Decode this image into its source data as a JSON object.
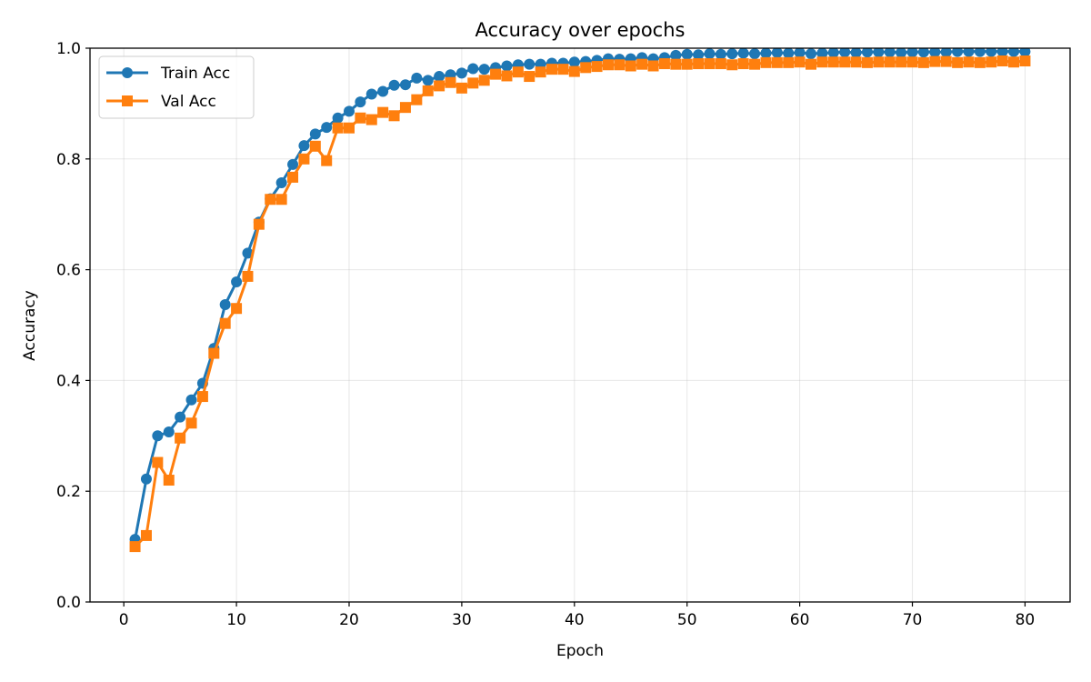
{
  "chart_data": {
    "type": "line",
    "title": "Accuracy over epochs",
    "xlabel": "Epoch",
    "ylabel": "Accuracy",
    "xlim": [
      -3,
      84
    ],
    "ylim": [
      0.0,
      1.0
    ],
    "xticks": [
      0,
      10,
      20,
      30,
      40,
      50,
      60,
      70,
      80
    ],
    "yticks": [
      0.0,
      0.2,
      0.4,
      0.6,
      0.8,
      1.0
    ],
    "xtick_labels": [
      "0",
      "10",
      "20",
      "30",
      "40",
      "50",
      "60",
      "70",
      "80"
    ],
    "ytick_labels": [
      "0.0",
      "0.2",
      "0.4",
      "0.6",
      "0.8",
      "1.0"
    ],
    "grid": true,
    "legend_position": "top-left",
    "x": [
      1,
      2,
      3,
      4,
      5,
      6,
      7,
      8,
      9,
      10,
      11,
      12,
      13,
      14,
      15,
      16,
      17,
      18,
      19,
      20,
      21,
      22,
      23,
      24,
      25,
      26,
      27,
      28,
      29,
      30,
      31,
      32,
      33,
      34,
      35,
      36,
      37,
      38,
      39,
      40,
      41,
      42,
      43,
      44,
      45,
      46,
      47,
      48,
      49,
      50,
      51,
      52,
      53,
      54,
      55,
      56,
      57,
      58,
      59,
      60,
      61,
      62,
      63,
      64,
      65,
      66,
      67,
      68,
      69,
      70,
      71,
      72,
      73,
      74,
      75,
      76,
      77,
      78,
      79,
      80
    ],
    "series": [
      {
        "name": "Train Acc",
        "color": "#1f77b4",
        "marker": "circle",
        "values": [
          0.113,
          0.222,
          0.3,
          0.307,
          0.334,
          0.365,
          0.395,
          0.458,
          0.537,
          0.578,
          0.63,
          0.686,
          0.728,
          0.757,
          0.79,
          0.824,
          0.845,
          0.857,
          0.874,
          0.886,
          0.903,
          0.917,
          0.922,
          0.933,
          0.934,
          0.946,
          0.942,
          0.949,
          0.952,
          0.955,
          0.963,
          0.962,
          0.965,
          0.968,
          0.97,
          0.971,
          0.971,
          0.973,
          0.973,
          0.975,
          0.976,
          0.978,
          0.981,
          0.98,
          0.981,
          0.983,
          0.981,
          0.983,
          0.987,
          0.989,
          0.988,
          0.99,
          0.989,
          0.99,
          0.991,
          0.99,
          0.991,
          0.992,
          0.991,
          0.992,
          0.99,
          0.991,
          0.992,
          0.993,
          0.992,
          0.993,
          0.993,
          0.993,
          0.992,
          0.993,
          0.993,
          0.993,
          0.993,
          0.994,
          0.994,
          0.994,
          0.994,
          0.994,
          0.994,
          0.994
        ]
      },
      {
        "name": "Val Acc",
        "color": "#ff7f0e",
        "marker": "square",
        "values": [
          0.1,
          0.12,
          0.252,
          0.22,
          0.296,
          0.323,
          0.371,
          0.449,
          0.503,
          0.53,
          0.588,
          0.682,
          0.727,
          0.727,
          0.767,
          0.8,
          0.823,
          0.797,
          0.856,
          0.856,
          0.874,
          0.871,
          0.884,
          0.878,
          0.893,
          0.907,
          0.923,
          0.932,
          0.938,
          0.928,
          0.937,
          0.942,
          0.953,
          0.95,
          0.957,
          0.949,
          0.957,
          0.962,
          0.962,
          0.958,
          0.965,
          0.967,
          0.97,
          0.97,
          0.968,
          0.971,
          0.968,
          0.972,
          0.971,
          0.971,
          0.972,
          0.972,
          0.972,
          0.97,
          0.972,
          0.971,
          0.974,
          0.974,
          0.974,
          0.975,
          0.971,
          0.975,
          0.975,
          0.975,
          0.975,
          0.974,
          0.975,
          0.975,
          0.975,
          0.975,
          0.974,
          0.976,
          0.976,
          0.974,
          0.975,
          0.974,
          0.975,
          0.977,
          0.975,
          0.977
        ]
      }
    ]
  }
}
